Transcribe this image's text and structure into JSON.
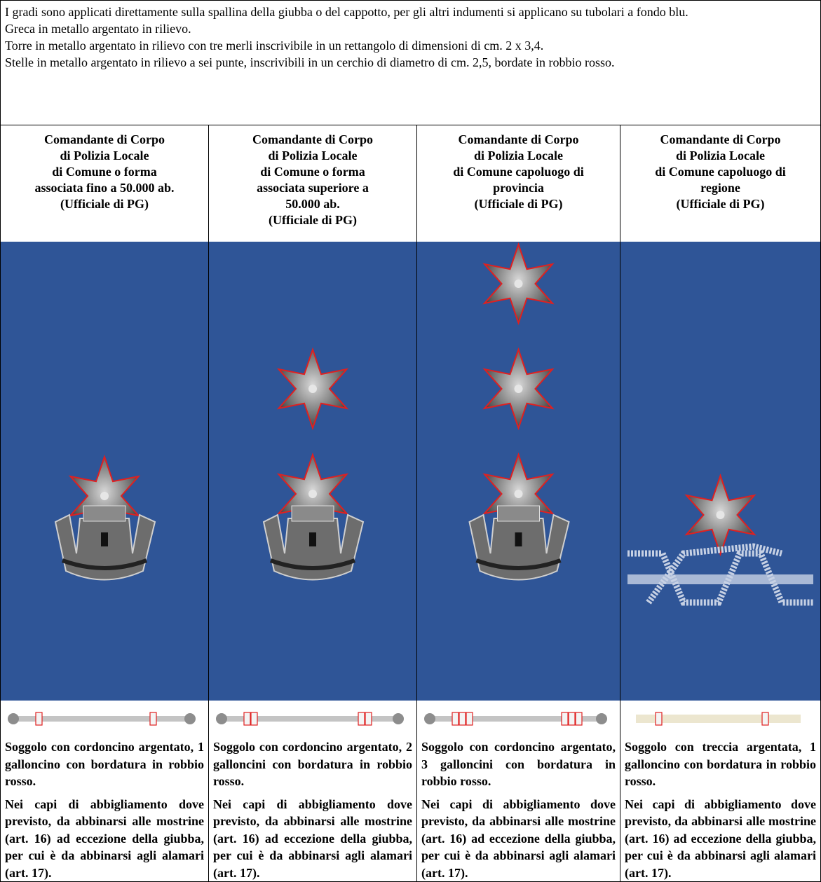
{
  "intro": [
    "I gradi sono applicati direttamente sulla spallina della giubba o del cappotto, per gli altri indumenti si applicano su tubolari a fondo blu.",
    "Greca in metallo argentato in rilievo.",
    "Torre in metallo argentato in rilievo con tre merli inscrivibile in un rettangolo di dimensioni di cm. 2 x 3,4.",
    "Stelle in metallo argentato in rilievo a sei punte, inscrivibili in un cerchio di diametro di cm. 2,5, bordate in robbio rosso."
  ],
  "columns": [
    {
      "header": [
        "Comandante di Corpo",
        "di Polizia Locale",
        "di Comune o forma",
        "associata fino a 50.000 ab.",
        "(Ufficiale di PG)"
      ],
      "cord": "Soggolo con cordoncino argentato, 1 galloncino con bordatura in robbio rosso.",
      "note": "Nei capi di abbigliamento dove previsto, da abbinarsi alle mostrine (art. 16) ad eccezione della giubba, per cui è da abbinarsi agli alamari (art. 17)."
    },
    {
      "header": [
        "Comandante di Corpo",
        "di Polizia Locale",
        "di Comune o forma",
        "associata superiore a",
        "50.000 ab.",
        "(Ufficiale di PG)"
      ],
      "cord": "Soggolo con cordoncino argentato, 2 galloncini con bordatura in robbio rosso.",
      "note": "Nei capi di abbigliamento dove previsto, da abbinarsi alle mostrine (art. 16) ad eccezione della giubba, per cui è da abbinarsi agli alamari (art. 17)."
    },
    {
      "header": [
        "Comandante di Corpo",
        "di Polizia Locale",
        "di Comune capoluogo di",
        "provincia",
        "(Ufficiale di PG)"
      ],
      "cord": "Soggolo con cordoncino argentato, 3 galloncini con bordatura in robbio rosso.",
      "note": "Nei capi di abbigliamento dove previsto, da abbinarsi alle mostrine (art. 16) ad eccezione della giubba, per cui è da abbinarsi agli alamari (art. 17)."
    },
    {
      "header": [
        "Comandante di Corpo",
        "di Polizia Locale",
        "di Comune capoluogo di",
        "regione",
        "(Ufficiale di PG)"
      ],
      "cord": "Soggolo con treccia argentata, 1 galloncino con bordatura in robbio rosso.",
      "note": "Nei capi di abbigliamento dove previsto, da abbinarsi alle mostrine (art. 16) ad eccezione della giubba, per cui è da abbinarsi agli alamari (art. 17)."
    }
  ]
}
